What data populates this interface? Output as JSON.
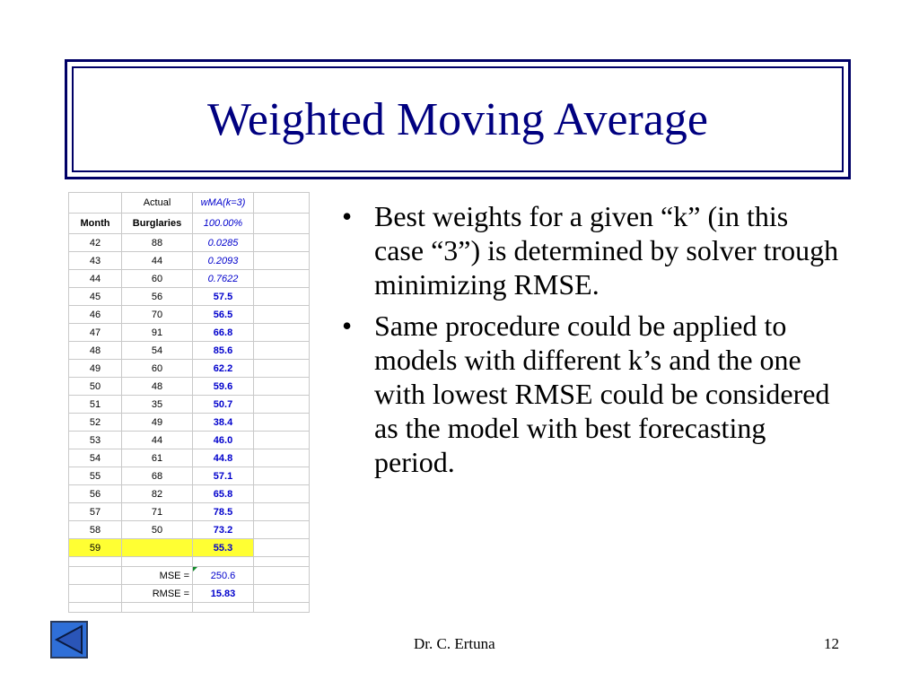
{
  "title": "Weighted Moving Average",
  "spreadsheet": {
    "header1": [
      "",
      "Actual",
      "wMA(k=3)",
      ""
    ],
    "header2": [
      "Month",
      "Burglaries",
      "100.00%",
      ""
    ],
    "rows": [
      {
        "month": "42",
        "burglaries": "88",
        "value": "0.0285",
        "style": "weight"
      },
      {
        "month": "43",
        "burglaries": "44",
        "value": "0.2093",
        "style": "weight"
      },
      {
        "month": "44",
        "burglaries": "60",
        "value": "0.7622",
        "style": "weight"
      },
      {
        "month": "45",
        "burglaries": "56",
        "value": "57.5",
        "style": "forecast"
      },
      {
        "month": "46",
        "burglaries": "70",
        "value": "56.5",
        "style": "forecast"
      },
      {
        "month": "47",
        "burglaries": "91",
        "value": "66.8",
        "style": "forecast"
      },
      {
        "month": "48",
        "burglaries": "54",
        "value": "85.6",
        "style": "forecast"
      },
      {
        "month": "49",
        "burglaries": "60",
        "value": "62.2",
        "style": "forecast"
      },
      {
        "month": "50",
        "burglaries": "48",
        "value": "59.6",
        "style": "forecast"
      },
      {
        "month": "51",
        "burglaries": "35",
        "value": "50.7",
        "style": "forecast"
      },
      {
        "month": "52",
        "burglaries": "49",
        "value": "38.4",
        "style": "forecast"
      },
      {
        "month": "53",
        "burglaries": "44",
        "value": "46.0",
        "style": "forecast"
      },
      {
        "month": "54",
        "burglaries": "61",
        "value": "44.8",
        "style": "forecast"
      },
      {
        "month": "55",
        "burglaries": "68",
        "value": "57.1",
        "style": "forecast"
      },
      {
        "month": "56",
        "burglaries": "82",
        "value": "65.8",
        "style": "forecast"
      },
      {
        "month": "57",
        "burglaries": "71",
        "value": "78.5",
        "style": "forecast"
      },
      {
        "month": "58",
        "burglaries": "50",
        "value": "73.2",
        "style": "forecast"
      },
      {
        "month": "59",
        "burglaries": "",
        "value": "55.3",
        "style": "highlight"
      }
    ],
    "mse_label": "MSE =",
    "mse_value": "250.6",
    "rmse_label": "RMSE =",
    "rmse_value": "15.83",
    "highlight_color": "#ffff33",
    "value_color": "#0000cc"
  },
  "bullets": [
    "Best weights for a given “k” (in this case “3”) is determined by solver trough minimizing RMSE.",
    "Same procedure could be applied to models with different k’s and the one with lowest RMSE could be considered as the model with best forecasting period."
  ],
  "bullet_symbol": "•",
  "footer": {
    "author": "Dr. C. Ertuna",
    "page": "12"
  },
  "nav": {
    "icon": "back-arrow-icon"
  }
}
